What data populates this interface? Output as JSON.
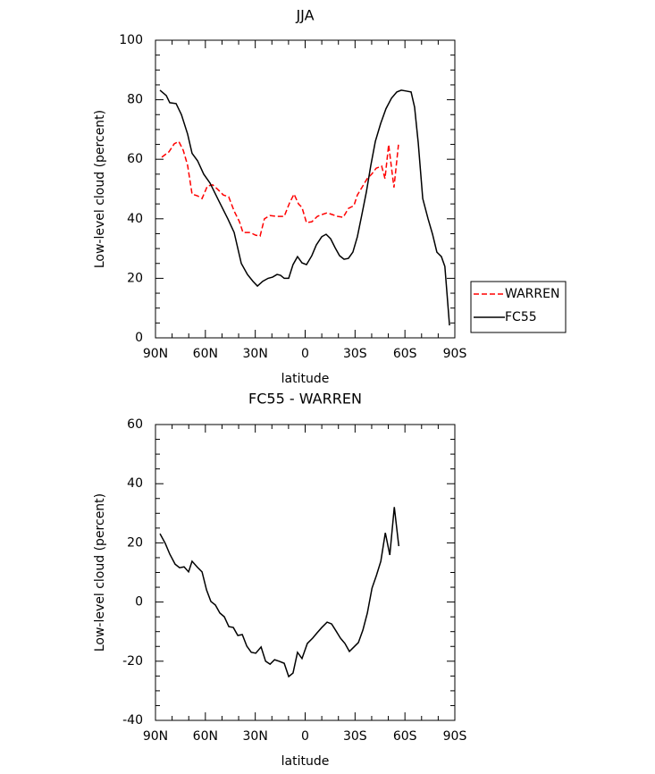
{
  "chart_data": [
    {
      "type": "line",
      "title": "JJA",
      "xlabel": "latitude",
      "ylabel": "Low-level cloud (percent)",
      "xlim": [
        90,
        -90
      ],
      "xticks": [
        {
          "value": 90,
          "label": "90N"
        },
        {
          "value": 60,
          "label": "60N"
        },
        {
          "value": 30,
          "label": "30N"
        },
        0,
        {
          "value": -30,
          "label": "30S"
        },
        {
          "value": -60,
          "label": "60S"
        },
        {
          "value": -90,
          "label": "90S"
        }
      ],
      "ylim": [
        0,
        100
      ],
      "yticks": [
        0,
        20,
        40,
        60,
        80,
        100
      ],
      "legend": "right",
      "series": [
        {
          "name": "WARREN",
          "color": "#ff0000",
          "dash": true,
          "x": [
            86.2,
            81.9,
            78.7,
            76,
            73.3,
            70.7,
            68,
            64.7,
            62,
            58.8,
            55.6,
            52.4,
            49.2,
            46,
            42.7,
            39.5,
            37.4,
            33.1,
            29.8,
            27.1,
            24.5,
            21.2,
            16.9,
            12.6,
            9.4,
            6.7,
            4,
            1.9,
            -0.8,
            -4,
            -7.3,
            -10,
            -13.2,
            -16.4,
            -19.6,
            -22.9,
            -26,
            -29.3,
            -31.4,
            -34.1,
            -37.3,
            -40,
            -42.7,
            -46,
            -48,
            -50.2,
            -53.4,
            -56.1
          ],
          "values": [
            60.7,
            62.5,
            65.2,
            66,
            63,
            58,
            48.3,
            47.7,
            46.8,
            51,
            51.4,
            49.8,
            48,
            47.4,
            42.6,
            39,
            35.4,
            35.4,
            34.5,
            34.2,
            40,
            41.1,
            40.8,
            40.8,
            45.3,
            48.3,
            45,
            43.8,
            38.7,
            39,
            40.8,
            41.4,
            42,
            41.4,
            40.8,
            40.5,
            43.5,
            44.4,
            48,
            50.5,
            53.5,
            55,
            57,
            57.7,
            53.5,
            64.9,
            50.5,
            64.9
          ]
        },
        {
          "name": "FC55",
          "color": "#000000",
          "dash": false,
          "x": [
            87.3,
            83.5,
            81.4,
            77.6,
            74.4,
            70.7,
            68,
            64.7,
            61,
            57.2,
            51.9,
            46.5,
            42.7,
            38.4,
            34.7,
            31.4,
            28.7,
            25.5,
            22.3,
            19.6,
            16.9,
            14.8,
            12.6,
            9.9,
            7.3,
            4.6,
            1.9,
            -0.8,
            -4,
            -6.7,
            -10,
            -12.6,
            -15.3,
            -18,
            -20.7,
            -23.4,
            -26,
            -28.7,
            -31.4,
            -34.1,
            -36.8,
            -39.5,
            -42.2,
            -45.4,
            -48.6,
            -51.9,
            -55.1,
            -57.8,
            -61,
            -63.7,
            -65.8,
            -68,
            -70.7,
            -73.9,
            -76.6,
            -79.2,
            -81.9,
            -84,
            -86.8
          ],
          "values": [
            83.2,
            81.4,
            79,
            78.7,
            75,
            68.5,
            62,
            59.5,
            55,
            52,
            46,
            40,
            35.4,
            25,
            21.3,
            19,
            17.4,
            19,
            20,
            20.4,
            21.3,
            21,
            20,
            20,
            24.6,
            27.3,
            25.2,
            24.6,
            27.6,
            31.2,
            34,
            34.8,
            33.3,
            30.3,
            27.6,
            26.4,
            26.7,
            28.8,
            34,
            41.4,
            49,
            58,
            66,
            72,
            77,
            80.5,
            82.6,
            83.2,
            82.9,
            82.6,
            77.5,
            65.5,
            46.8,
            40,
            34.8,
            28.8,
            27.3,
            24,
            4.2
          ]
        }
      ]
    },
    {
      "type": "line",
      "title": "FC55 - WARREN",
      "xlabel": "latitude",
      "ylabel": "Low-level cloud (percent)",
      "xlim": [
        90,
        -90
      ],
      "xticks": [
        {
          "value": 90,
          "label": "90N"
        },
        {
          "value": 60,
          "label": "60N"
        },
        {
          "value": 30,
          "label": "30N"
        },
        0,
        {
          "value": -30,
          "label": "30S"
        },
        {
          "value": -60,
          "label": "60S"
        },
        {
          "value": -90,
          "label": "90S"
        }
      ],
      "ylim": [
        -40,
        60
      ],
      "yticks": [
        -40,
        -20,
        0,
        20,
        40,
        60
      ],
      "color": "#000000",
      "x": [
        87.3,
        84.1,
        81.4,
        78.2,
        75.5,
        72.8,
        70.1,
        68,
        64.7,
        62,
        59.3,
        56.7,
        54,
        51.3,
        48.6,
        45.9,
        43.2,
        40.5,
        37.8,
        35.1,
        32.4,
        29.7,
        26.5,
        23.8,
        21.1,
        18.4,
        15.7,
        12.6,
        9.9,
        7.3,
        4.6,
        1.9,
        -1.3,
        -4.5,
        -7.2,
        -10,
        -13.2,
        -15.9,
        -18.6,
        -21.2,
        -23.9,
        -26.6,
        -29.3,
        -32,
        -34.7,
        -37.4,
        -40.2,
        -42.8,
        -45.5,
        -48.2,
        -50.9,
        -53.6,
        -56.3
      ],
      "values": [
        23.1,
        19.8,
        16.2,
        12.8,
        11.6,
        11.9,
        10.2,
        13.8,
        11.7,
        10.2,
        4.1,
        0.2,
        -1,
        -3.7,
        -5,
        -8.3,
        -8.6,
        -11.3,
        -11,
        -14.9,
        -17,
        -17.3,
        -15.2,
        -20,
        -21,
        -19.5,
        -20,
        -20.7,
        -25.2,
        -24,
        -17,
        -19.1,
        -14,
        -12.2,
        -10.4,
        -8.6,
        -6.8,
        -7.4,
        -9.8,
        -12.2,
        -14,
        -16.7,
        -15.2,
        -13.7,
        -9.5,
        -3.7,
        4.7,
        8.9,
        13.8,
        23.4,
        15.9,
        32.1,
        18.9
      ]
    }
  ]
}
